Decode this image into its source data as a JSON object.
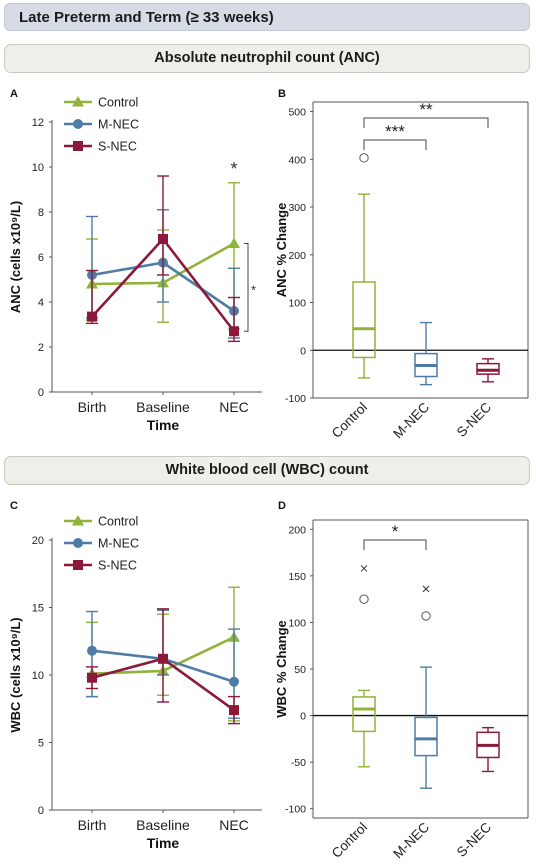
{
  "header": {
    "title": "Late Preterm and Term (≥ 33 weeks)"
  },
  "sections": [
    {
      "title": "Absolute neutrophil count (ANC)"
    },
    {
      "title": "White blood cell (WBC) count"
    }
  ],
  "colors": {
    "control": "#8fb33b",
    "mnec": "#4f7ca6",
    "snec": "#8b1a3a"
  },
  "chart_data": [
    {
      "panel": "A",
      "type": "line",
      "categories": [
        "Birth",
        "Baseline",
        "NEC"
      ],
      "xlabel": "Time",
      "ylabel": "ANC (cells x10⁹/L)",
      "ylim": [
        0,
        12
      ],
      "yticks": [
        0,
        2,
        4,
        6,
        8,
        10,
        12
      ],
      "legend_position": "top-left",
      "series": [
        {
          "name": "Control",
          "marker": "triangle",
          "values": [
            4.8,
            4.85,
            6.6
          ],
          "err_high": [
            6.8,
            7.2,
            9.3
          ],
          "err_low": [
            3.2,
            3.1,
            2.8
          ]
        },
        {
          "name": "M-NEC",
          "marker": "circle",
          "values": [
            5.2,
            5.75,
            3.6
          ],
          "err_high": [
            7.8,
            8.1,
            5.5
          ],
          "err_low": [
            3.3,
            4.0,
            2.4
          ]
        },
        {
          "name": "S-NEC",
          "marker": "square",
          "values": [
            3.35,
            6.8,
            2.7
          ],
          "err_high": [
            5.4,
            9.6,
            4.2
          ],
          "err_low": [
            3.05,
            5.2,
            2.25
          ]
        }
      ],
      "annotations": {
        "star": "*",
        "bracket_star": "*"
      }
    },
    {
      "panel": "B",
      "type": "box",
      "categories": [
        "Control",
        "M-NEC",
        "S-NEC"
      ],
      "ylabel": "ANC % Change",
      "ylim": [
        -100,
        520
      ],
      "yticks": [
        -100,
        0,
        100,
        200,
        300,
        400,
        500
      ],
      "boxes": [
        {
          "whisker_low": -58,
          "q1": -15,
          "median": 45,
          "q3": 143,
          "whisker_high": 327,
          "outliers_circle": [
            403
          ]
        },
        {
          "whisker_low": -72,
          "q1": -55,
          "median": -32,
          "q3": -7,
          "whisker_high": 58
        },
        {
          "whisker_low": -66,
          "q1": -50,
          "median": -42,
          "q3": -28,
          "whisker_high": -18
        }
      ],
      "significance": [
        {
          "from": "Control",
          "to": "M-NEC",
          "label": "***"
        },
        {
          "from": "Control",
          "to": "S-NEC",
          "label": "**"
        }
      ]
    },
    {
      "panel": "C",
      "type": "line",
      "categories": [
        "Birth",
        "Baseline",
        "NEC"
      ],
      "xlabel": "Time",
      "ylabel": "WBC (cells x10⁹/L)",
      "ylim": [
        0,
        20
      ],
      "yticks": [
        0,
        5,
        10,
        15,
        20
      ],
      "legend_position": "top-left",
      "series": [
        {
          "name": "Control",
          "marker": "triangle",
          "values": [
            10.1,
            10.3,
            12.8
          ],
          "err_high": [
            13.9,
            14.5,
            16.5
          ],
          "err_low": [
            8.4,
            8.5,
            6.6
          ]
        },
        {
          "name": "M-NEC",
          "marker": "circle",
          "values": [
            11.8,
            11.2,
            9.5
          ],
          "err_high": [
            14.7,
            14.8,
            13.4
          ],
          "err_low": [
            8.4,
            10.0,
            6.8
          ]
        },
        {
          "name": "S-NEC",
          "marker": "square",
          "values": [
            9.8,
            11.2,
            7.4
          ],
          "err_high": [
            10.6,
            14.9,
            8.4
          ],
          "err_low": [
            9.0,
            8.0,
            6.4
          ]
        }
      ]
    },
    {
      "panel": "D",
      "type": "box",
      "categories": [
        "Control",
        "M-NEC",
        "S-NEC"
      ],
      "ylabel": "WBC % Change",
      "ylim": [
        -110,
        210
      ],
      "yticks": [
        -100,
        -50,
        0,
        50,
        100,
        150,
        200
      ],
      "boxes": [
        {
          "whisker_low": -55,
          "q1": -17,
          "median": 7,
          "q3": 20,
          "whisker_high": 27,
          "outliers_circle": [
            125
          ],
          "outliers_x": [
            158
          ]
        },
        {
          "whisker_low": -78,
          "q1": -43,
          "median": -25,
          "q3": -2,
          "whisker_high": 52,
          "outliers_circle": [
            107
          ],
          "outliers_x": [
            136
          ]
        },
        {
          "whisker_low": -60,
          "q1": -45,
          "median": -32,
          "q3": -18,
          "whisker_high": -13
        }
      ],
      "significance": [
        {
          "from": "Control",
          "to": "M-NEC",
          "label": "*"
        }
      ]
    }
  ]
}
